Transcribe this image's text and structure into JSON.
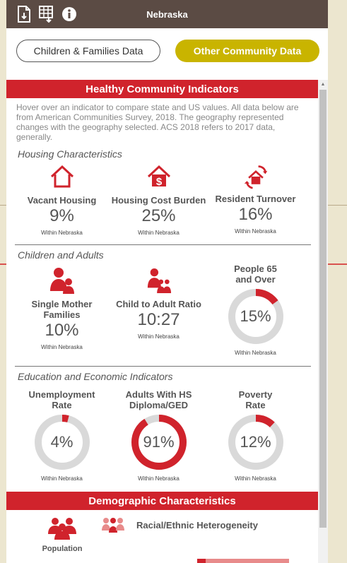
{
  "header": {
    "title": "Nebraska",
    "icons": [
      "pdf-download-icon",
      "table-download-icon",
      "info-icon"
    ]
  },
  "tabs": [
    {
      "label": "Children & Families Data",
      "active": false
    },
    {
      "label": "Other Community Data",
      "active": true
    }
  ],
  "colors": {
    "accent": "#d0232c",
    "active_tab": "#c9b400",
    "header_bg": "#5b4b44",
    "donut_track": "#d9d9d9"
  },
  "healthy": {
    "title": "Healthy Community Indicators",
    "intro": "Hover over an indicator to compare state and US values. All data below are from American Communities Survey, 2018. The geography represented changes with the geography selected. ACS 2018 refers to 2017 data, generally."
  },
  "housing": {
    "title": "Housing Characteristics",
    "items": [
      {
        "label": "Vacant Housing",
        "value": "9%",
        "note": "Within Nebraska",
        "icon": "house-icon"
      },
      {
        "label": "Housing Cost Burden",
        "value": "25%",
        "note": "Within Nebraska",
        "icon": "house-dollar-icon"
      },
      {
        "label": "Resident Turnover",
        "value": "16%",
        "note": "Within Nebraska",
        "icon": "house-cycle-icon"
      }
    ]
  },
  "children": {
    "title": "Children and Adults",
    "items": [
      {
        "label": "Single Mother Families",
        "value": "10%",
        "note": "Within Nebraska",
        "icon": "mother-child-icon"
      },
      {
        "label": "Child to Adult Ratio",
        "value": "10:27",
        "note": "Within Nebraska",
        "icon": "family-group-icon"
      },
      {
        "label": "People 65 and Over",
        "value": "15%",
        "note": "Within Nebraska",
        "fraction": 0.15
      }
    ]
  },
  "education": {
    "title": "Education and Economic Indicators",
    "items": [
      {
        "label": "Unemployment Rate",
        "value": "4%",
        "note": "Within Nebraska",
        "fraction": 0.04
      },
      {
        "label": "Adults With HS Diploma/GED",
        "value": "91%",
        "note": "Within Nebraska",
        "fraction": 0.91
      },
      {
        "label": "Poverty Rate",
        "value": "12%",
        "note": "Within Nebraska",
        "fraction": 0.12
      }
    ]
  },
  "demographic": {
    "title": "Demographic Characteristics",
    "population_label": "Population",
    "heterogeneity_label": "Racial/Ethnic Heterogeneity"
  }
}
